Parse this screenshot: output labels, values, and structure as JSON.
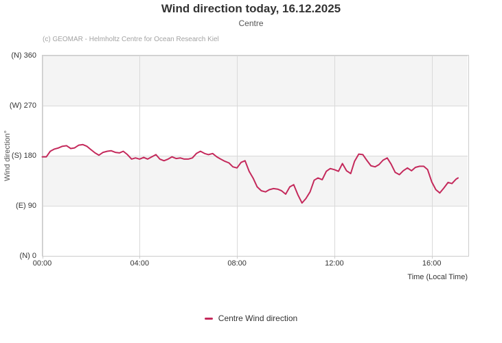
{
  "header": {
    "title": "Wind direction today, 16.12.2025",
    "subtitle": "Centre",
    "credit": "(c) GEOMAR - Helmholtz Centre for Ocean Research Kiel"
  },
  "legend": {
    "label": "Centre Wind direction"
  },
  "colors": {
    "line": "#C4295B",
    "band": "#f4f4f4",
    "grid": "#d9d9d9",
    "axis_line": "#cccccc",
    "tick_text": "#333333",
    "title_text": "#333333",
    "subtitle_text": "#555555",
    "credit_text": "#a3a3a3"
  },
  "chart_data": {
    "type": "line",
    "title": "Wind direction today, 16.12.2025",
    "subtitle": "Centre",
    "xlabel": "Time (Local Time)",
    "ylabel": "Wind direction°",
    "x_unit": "hours_local_time",
    "xlim": [
      0,
      17.47
    ],
    "ylim": [
      0,
      360
    ],
    "grid": true,
    "legend_position": "bottom",
    "x_ticks": [
      {
        "t": 0,
        "label": "00:00"
      },
      {
        "t": 4,
        "label": "04:00"
      },
      {
        "t": 8,
        "label": "08:00"
      },
      {
        "t": 12,
        "label": "12:00"
      },
      {
        "t": 16,
        "label": "16:00"
      }
    ],
    "y_ticks": [
      {
        "v": 0,
        "label": "(N) 0"
      },
      {
        "v": 90,
        "label": "(E) 90"
      },
      {
        "v": 180,
        "label": "(S) 180"
      },
      {
        "v": 270,
        "label": "(W) 270"
      },
      {
        "v": 360,
        "label": "(N) 360"
      }
    ],
    "shaded_bands": [
      [
        90,
        180
      ],
      [
        270,
        360
      ]
    ],
    "series": [
      {
        "name": "Centre Wind direction",
        "color": "#C4295B",
        "x": [
          0,
          0.17,
          0.33,
          0.5,
          0.67,
          0.83,
          1,
          1.17,
          1.33,
          1.5,
          1.67,
          1.83,
          2,
          2.17,
          2.33,
          2.5,
          2.67,
          2.83,
          3,
          3.17,
          3.33,
          3.5,
          3.67,
          3.83,
          4,
          4.17,
          4.33,
          4.5,
          4.67,
          4.83,
          5,
          5.17,
          5.33,
          5.5,
          5.67,
          5.83,
          6,
          6.17,
          6.33,
          6.5,
          6.67,
          6.83,
          7,
          7.17,
          7.33,
          7.5,
          7.67,
          7.83,
          8,
          8.17,
          8.33,
          8.5,
          8.67,
          8.83,
          9,
          9.17,
          9.33,
          9.5,
          9.67,
          9.83,
          10,
          10.17,
          10.33,
          10.5,
          10.67,
          10.83,
          11,
          11.17,
          11.33,
          11.5,
          11.67,
          11.83,
          12,
          12.17,
          12.33,
          12.5,
          12.67,
          12.83,
          13,
          13.17,
          13.33,
          13.5,
          13.67,
          13.83,
          14,
          14.17,
          14.33,
          14.5,
          14.67,
          14.83,
          15,
          15.17,
          15.33,
          15.5,
          15.67,
          15.83,
          16,
          16.17,
          16.33,
          16.5,
          16.67,
          16.83,
          17,
          17.08
        ],
        "values": [
          178,
          178,
          188,
          192,
          194,
          197,
          198,
          193,
          194,
          199,
          200,
          197,
          191,
          185,
          181,
          186,
          188,
          189,
          186,
          185,
          188,
          182,
          174,
          176,
          174,
          177,
          174,
          178,
          182,
          174,
          171,
          174,
          178,
          175,
          176,
          174,
          174,
          176,
          184,
          188,
          184,
          182,
          184,
          178,
          174,
          170,
          167,
          160,
          158,
          168,
          171,
          152,
          139,
          124,
          117,
          115,
          119,
          121,
          120,
          117,
          111,
          124,
          128,
          110,
          95,
          103,
          115,
          136,
          140,
          137,
          152,
          157,
          155,
          152,
          166,
          153,
          148,
          170,
          183,
          182,
          172,
          162,
          160,
          164,
          172,
          176,
          165,
          150,
          146,
          153,
          158,
          153,
          159,
          161,
          161,
          155,
          133,
          119,
          113,
          122,
          132,
          130,
          138,
          140
        ]
      }
    ]
  }
}
